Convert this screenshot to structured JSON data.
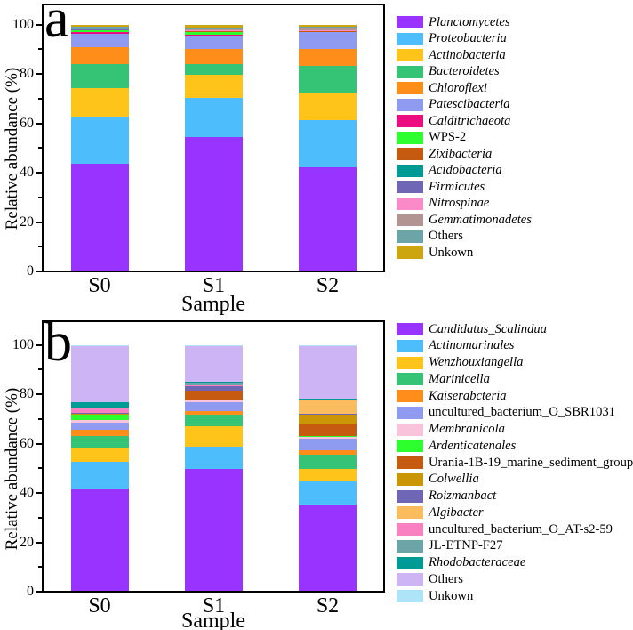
{
  "figure": {
    "background": "#FFFFFF"
  },
  "chart_data": [
    {
      "panel_label": "a",
      "type": "bar",
      "stacked": true,
      "orientation": "vertical",
      "title": "",
      "xlabel": "Sample",
      "ylabel": "Relative abundance (%)",
      "ylim": [
        0,
        100
      ],
      "yticks": [
        0,
        20,
        40,
        60,
        80,
        100
      ],
      "yticks_minor": [
        10,
        30,
        50,
        70,
        90
      ],
      "grid": false,
      "legend_position": "right",
      "categories": [
        "S0",
        "S1",
        "S2"
      ],
      "series": [
        {
          "name": "Planctomycetes",
          "italic": true,
          "color": "#9933FF",
          "values": [
            43.8,
            54.7,
            42.2
          ]
        },
        {
          "name": "Proteobacteria",
          "italic": true,
          "color": "#4DBDFC",
          "values": [
            19.0,
            15.6,
            19.1
          ]
        },
        {
          "name": "Actinobacteria",
          "italic": true,
          "color": "#FFC419",
          "values": [
            11.8,
            9.4,
            11.4
          ]
        },
        {
          "name": "Bacteroidetes",
          "italic": true,
          "color": "#35C475",
          "values": [
            9.6,
            4.4,
            10.8
          ]
        },
        {
          "name": "Chloroflexi",
          "italic": true,
          "color": "#FF8D1A",
          "values": [
            6.7,
            6.3,
            6.7
          ]
        },
        {
          "name": "Patescibacteria",
          "italic": true,
          "color": "#8E9BF0",
          "values": [
            5.6,
            5.4,
            6.8
          ]
        },
        {
          "name": "Calditrichaeota",
          "italic": true,
          "color": "#EE0C81",
          "values": [
            0.7,
            0.2,
            0.2
          ]
        },
        {
          "name": "WPS-2",
          "italic": false,
          "color": "#2DFE2D",
          "values": [
            0.7,
            1.4,
            0.2
          ]
        },
        {
          "name": "Zixibacteria",
          "italic": true,
          "color": "#C75A11",
          "values": [
            0.1,
            0.1,
            0.1
          ]
        },
        {
          "name": "Acidobacteria",
          "italic": true,
          "color": "#009B94",
          "values": [
            0.1,
            0.1,
            0.1
          ]
        },
        {
          "name": "Firmicutes",
          "italic": true,
          "color": "#6F67B5",
          "values": [
            0.1,
            0.1,
            0.1
          ]
        },
        {
          "name": "Nitrospinae",
          "italic": true,
          "color": "#FA8BC8",
          "values": [
            0.1,
            0.1,
            0.1
          ]
        },
        {
          "name": "Gemmatimonadetes",
          "italic": true,
          "color": "#B29492",
          "values": [
            0.1,
            0.3,
            0.7
          ]
        },
        {
          "name": "Others",
          "italic": false,
          "color": "#6BA5A8",
          "values": [
            0.8,
            1.0,
            0.7
          ]
        },
        {
          "name": "Unkown",
          "italic": false,
          "color": "#CDA50E",
          "values": [
            0.8,
            0.9,
            0.8
          ]
        }
      ]
    },
    {
      "panel_label": "b",
      "type": "bar",
      "stacked": true,
      "orientation": "vertical",
      "title": "",
      "xlabel": "Sample",
      "ylabel": "Relative abundance (%)",
      "ylim": [
        0,
        100
      ],
      "yticks": [
        0,
        20,
        40,
        60,
        80,
        100
      ],
      "yticks_minor": [
        10,
        30,
        50,
        70,
        90
      ],
      "grid": false,
      "legend_position": "right",
      "categories": [
        "S0",
        "S1",
        "S2"
      ],
      "series": [
        {
          "name": "Candidatus_Scalindua",
          "italic": true,
          "color": "#9933FF",
          "values": [
            41.8,
            50.0,
            35.5
          ]
        },
        {
          "name": "Actinomarinales",
          "italic": true,
          "color": "#4DBDFC",
          "values": [
            11.0,
            8.8,
            9.4
          ]
        },
        {
          "name": "Wenzhouxiangella",
          "italic": true,
          "color": "#FFC419",
          "values": [
            5.7,
            8.5,
            5.1
          ]
        },
        {
          "name": "Marinicella",
          "italic": true,
          "color": "#35C475",
          "values": [
            4.7,
            4.5,
            5.5
          ]
        },
        {
          "name": "Kaiserabcteria",
          "italic": true,
          "color": "#FF8D1A",
          "values": [
            2.5,
            1.5,
            2.1
          ]
        },
        {
          "name": "uncultured_bacterium_O_SBR1031",
          "italic": false,
          "color": "#8E9BF0",
          "values": [
            2.9,
            3.5,
            4.4
          ]
        },
        {
          "name": "Membranicola",
          "italic": true,
          "color": "#FAC3DC",
          "values": [
            1.1,
            0.9,
            1.1
          ]
        },
        {
          "name": "Ardenticatenales",
          "italic": true,
          "color": "#2DFE2D",
          "values": [
            2.2,
            0.1,
            0.1
          ]
        },
        {
          "name": "Urania-1B-19_marine_sediment_group",
          "italic": false,
          "color": "#C75A11",
          "values": [
            0.2,
            3.8,
            5.1
          ]
        },
        {
          "name": "Colwellia",
          "italic": true,
          "color": "#CB9606",
          "values": [
            0.2,
            0.1,
            3.8
          ]
        },
        {
          "name": "Roizmanbact",
          "italic": true,
          "color": "#6F67B5",
          "values": [
            0.2,
            1.8,
            0.2
          ]
        },
        {
          "name": "Algibacter",
          "italic": true,
          "color": "#FBBC60",
          "values": [
            0.2,
            0.1,
            5.5
          ]
        },
        {
          "name": "uncultured_bacterium_O_AT-s2-59",
          "italic": false,
          "color": "#F981C1",
          "values": [
            1.7,
            0.1,
            0.2
          ]
        },
        {
          "name": "JL-ETNP-F27",
          "italic": false,
          "color": "#6BA5A8",
          "values": [
            0.3,
            1.3,
            0.2
          ]
        },
        {
          "name": "Rhodobacteraceae",
          "italic": true,
          "color": "#009B94",
          "values": [
            2.1,
            0.1,
            0.2
          ]
        },
        {
          "name": "Others",
          "italic": false,
          "color": "#CDB4F5",
          "values": [
            22.9,
            14.7,
            21.3
          ]
        },
        {
          "name": "Unkown",
          "italic": false,
          "color": "#AEE4F8",
          "values": [
            0.3,
            0.2,
            0.3
          ]
        }
      ]
    }
  ]
}
